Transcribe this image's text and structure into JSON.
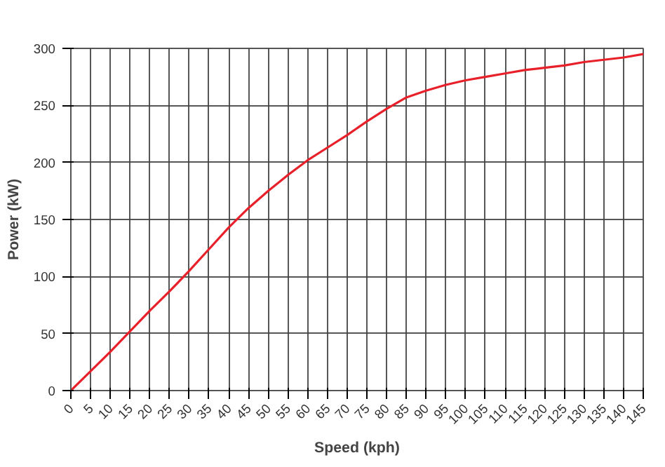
{
  "chart_data": {
    "type": "line",
    "xlabel": "Speed (kph)",
    "ylabel": "Power (kW)",
    "x": [
      0,
      5,
      10,
      15,
      20,
      25,
      30,
      35,
      40,
      45,
      50,
      55,
      60,
      65,
      70,
      75,
      80,
      85,
      90,
      95,
      100,
      105,
      110,
      115,
      120,
      125,
      130,
      135,
      140,
      145
    ],
    "series": [
      {
        "color": "#e8202a",
        "values": [
          0,
          17,
          34,
          52,
          70,
          87,
          105,
          124,
          143,
          160,
          175,
          189,
          202,
          213,
          224,
          236,
          247,
          257,
          263,
          268,
          272,
          275,
          278,
          281,
          283,
          285,
          288,
          290,
          292,
          295
        ]
      }
    ],
    "xlim": [
      0,
      145
    ],
    "xticks": [
      0,
      5,
      10,
      15,
      20,
      25,
      30,
      35,
      40,
      45,
      50,
      55,
      60,
      65,
      70,
      75,
      80,
      85,
      90,
      95,
      100,
      105,
      110,
      115,
      120,
      125,
      130,
      135,
      140,
      145
    ],
    "ylim": [
      0,
      300
    ],
    "yticks": [
      0,
      50,
      100,
      150,
      200,
      250,
      300
    ],
    "grid": true,
    "marker": "none",
    "line_style": "solid"
  }
}
